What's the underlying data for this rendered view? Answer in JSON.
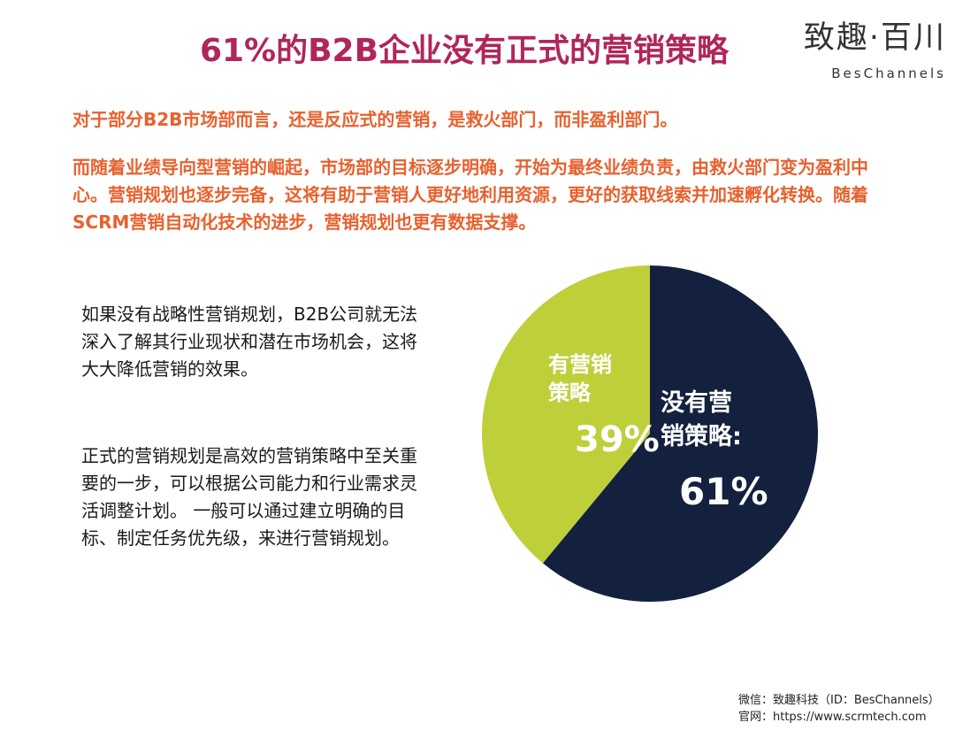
{
  "header": {
    "title": "61%的B2B企业没有正式的营销策略",
    "logo_cn": "致趣·百川",
    "logo_en": "BesChannels"
  },
  "intro": {
    "p1": "对于部分B2B市场部而言，还是反应式的营销，是救火部门，而非盈利部门。",
    "p2": "而随着业绩导向型营销的崛起，市场部的目标逐步明确，开始为最终业绩负责，由救火部门变为盈利中心。营销规划也逐步完备，这将有助于营销人更好地利用资源，更好的获取线索并加速孵化转换。随着SCRM营销自动化技术的进步，营销规划也更有数据支撑。"
  },
  "side": {
    "p1": "如果没有战略性营销规划，B2B公司就无法深入了解其行业现状和潜在市场机会，这将大大降低营销的效果。",
    "p2": "正式的营销规划是高效的营销策略中至关重要的一步，可以根据公司能力和行业需求灵活调整计划。 一般可以通过建立明确的目标、制定任务优先级，来进行营销规划。"
  },
  "chart_data": {
    "type": "pie",
    "slices": [
      {
        "label_lines": [
          "没有营",
          "销策略:"
        ],
        "value": 61,
        "value_label": "61%",
        "color": "#13213f"
      },
      {
        "label_lines": [
          "有营销",
          "策略"
        ],
        "value": 39,
        "value_label": "39%",
        "color": "#bfcf3a"
      }
    ],
    "start": "top",
    "direction": "clockwise"
  },
  "footer": {
    "line1": "微信：致趣科技（ID：BesChannels）",
    "line2": "官网：https://www.scrmtech.com"
  }
}
